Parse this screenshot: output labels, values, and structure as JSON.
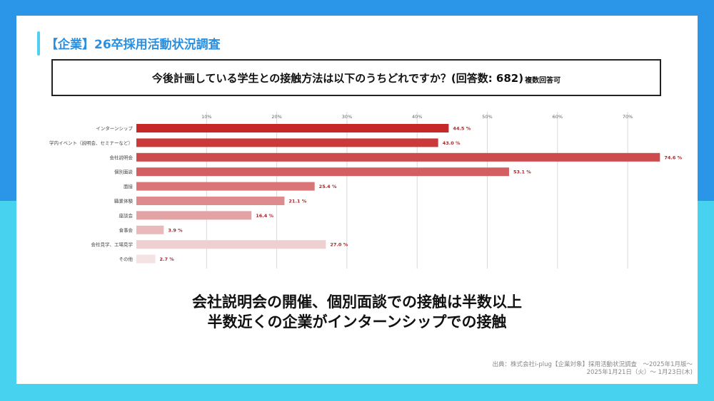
{
  "header": {
    "title": "【企業】26卒採用活動状況調査"
  },
  "question": {
    "main": "今後計画している学生との接触方法は以下のうちどれですか？(回答数: 682)",
    "note": "複数回答可"
  },
  "chart_data": {
    "type": "bar",
    "orientation": "horizontal",
    "title": "今後計画している学生との接触方法は以下のうちどれですか？(回答数: 682)",
    "xlim": [
      0,
      75
    ],
    "xticks": [
      10,
      20,
      30,
      40,
      50,
      60,
      70
    ],
    "xtick_labels": [
      "10%",
      "20%",
      "30%",
      "40%",
      "50%",
      "60%",
      "70%"
    ],
    "grid": true,
    "categories": [
      "インターンシップ",
      "学内イベント（説明会、セミナーなど）",
      "会社説明会",
      "個別面談",
      "面接",
      "職業体験",
      "座談会",
      "食事会",
      "会社見学、工場見学",
      "その他"
    ],
    "values": [
      44.5,
      43.0,
      74.6,
      53.1,
      25.4,
      21.1,
      16.4,
      3.9,
      27.0,
      2.7
    ],
    "value_labels": [
      "44.5 %",
      "43.0 %",
      "74.6 %",
      "53.1 %",
      "25.4 %",
      "21.1 %",
      "16.4 %",
      "3.9 %",
      "27.0 %",
      "2.7 %"
    ],
    "colors": [
      "#c62828",
      "#ca3a3a",
      "#cd4a4d",
      "#d45f62",
      "#d97478",
      "#de8b8e",
      "#e3a2a4",
      "#e9babb",
      "#efd0d1",
      "#f5e3e3"
    ]
  },
  "conclusion": {
    "line1": "会社説明会の開催、個別面談での接触は半数以上",
    "line2": "半数近くの企業がインターンシップでの接触"
  },
  "source": {
    "line1": "出典：株式会社i-plug【企業対象】採用活動状況調査　～2025年1月版～",
    "line2": "2025年1月21日（火）～ 1月23日(木)"
  }
}
